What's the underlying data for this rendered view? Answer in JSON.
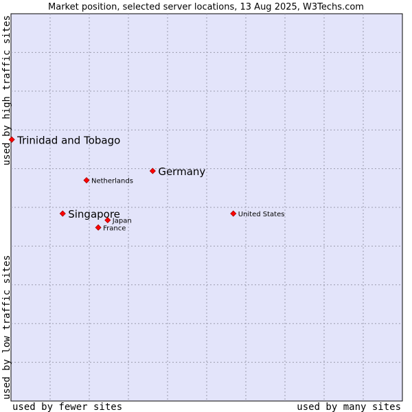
{
  "chart_data": {
    "type": "scatter",
    "title": "Market position, selected server locations, 13 Aug 2025, W3Techs.com",
    "xlabel_low": "used by fewer sites",
    "xlabel_high": "used by many sites",
    "ylabel_low": "used by low traffic sites",
    "ylabel_high": "used by high traffic sites",
    "xlim": [
      0,
      100
    ],
    "ylim": [
      0,
      100
    ],
    "grid": true,
    "marker_color": "#ff0000",
    "plot_background": "#e3e4fa",
    "points": [
      {
        "label": "Trinidad and Tobago",
        "x": 0.2,
        "y": 67.5,
        "emphasis": "large"
      },
      {
        "label": "Germany",
        "x": 36.2,
        "y": 59.4,
        "emphasis": "large"
      },
      {
        "label": "Netherlands",
        "x": 19.3,
        "y": 57.0,
        "emphasis": "small"
      },
      {
        "label": "Singapore",
        "x": 13.2,
        "y": 48.4,
        "emphasis": "large"
      },
      {
        "label": "Japan",
        "x": 24.7,
        "y": 46.7,
        "emphasis": "small"
      },
      {
        "label": "France",
        "x": 22.3,
        "y": 44.8,
        "emphasis": "small"
      },
      {
        "label": "United States",
        "x": 56.8,
        "y": 48.4,
        "emphasis": "small"
      }
    ]
  }
}
